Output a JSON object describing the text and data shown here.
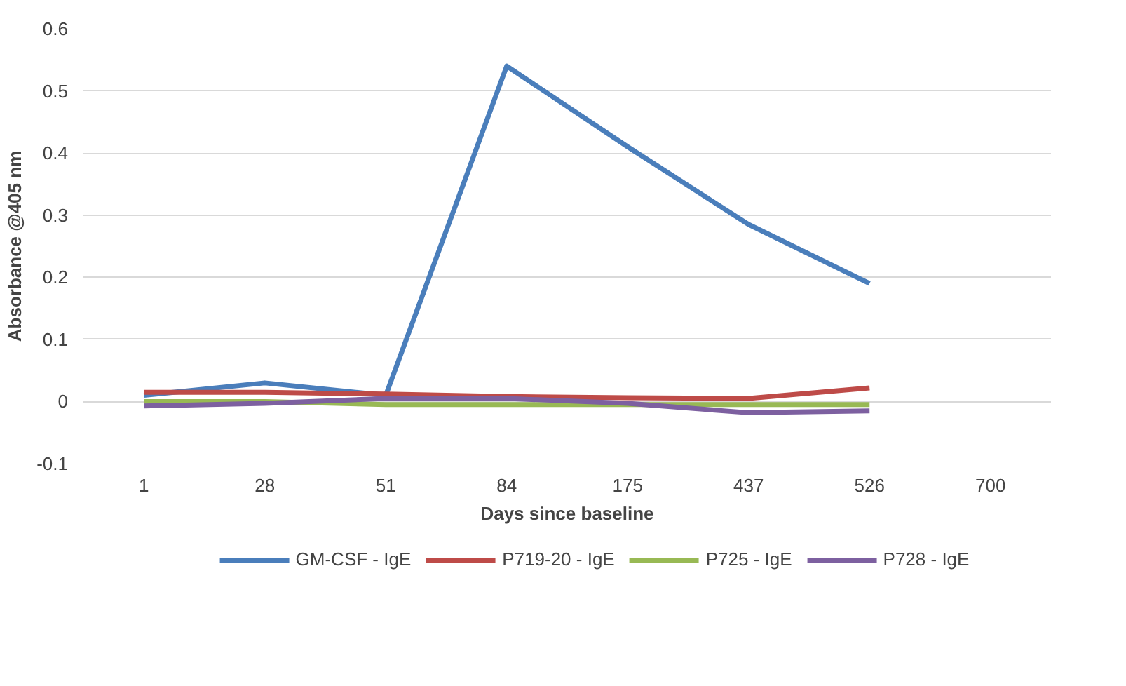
{
  "chart_data": {
    "type": "line",
    "xlabel": "Days since baseline",
    "ylabel": "Absorbance @405 nm",
    "categories": [
      "1",
      "28",
      "51",
      "84",
      "175",
      "437",
      "526",
      "700"
    ],
    "ylim": [
      -0.1,
      0.6
    ],
    "yticks": [
      -0.1,
      0,
      0.1,
      0.2,
      0.3,
      0.4,
      0.5,
      0.6
    ],
    "grid": "y",
    "legend": "bottom",
    "marker": "none",
    "line_style": "solid",
    "series": [
      {
        "name": "GM-CSF - IgE",
        "color": "#4a7ebb",
        "values": [
          0.01,
          0.03,
          0.01,
          0.54,
          0.41,
          0.285,
          0.19,
          null
        ]
      },
      {
        "name": "P719-20 - IgE",
        "color": "#be4b48",
        "values": [
          0.015,
          0.015,
          0.012,
          0.008,
          0.006,
          0.005,
          0.022,
          null
        ]
      },
      {
        "name": "P725 - IgE",
        "color": "#98b954",
        "values": [
          0,
          0,
          -0.005,
          -0.005,
          -0.005,
          -0.005,
          -0.005,
          null
        ]
      },
      {
        "name": "P728 - IgE",
        "color": "#7d60a0",
        "values": [
          -0.007,
          -0.003,
          0.005,
          0.005,
          -0.003,
          -0.018,
          -0.015,
          null
        ]
      }
    ]
  }
}
